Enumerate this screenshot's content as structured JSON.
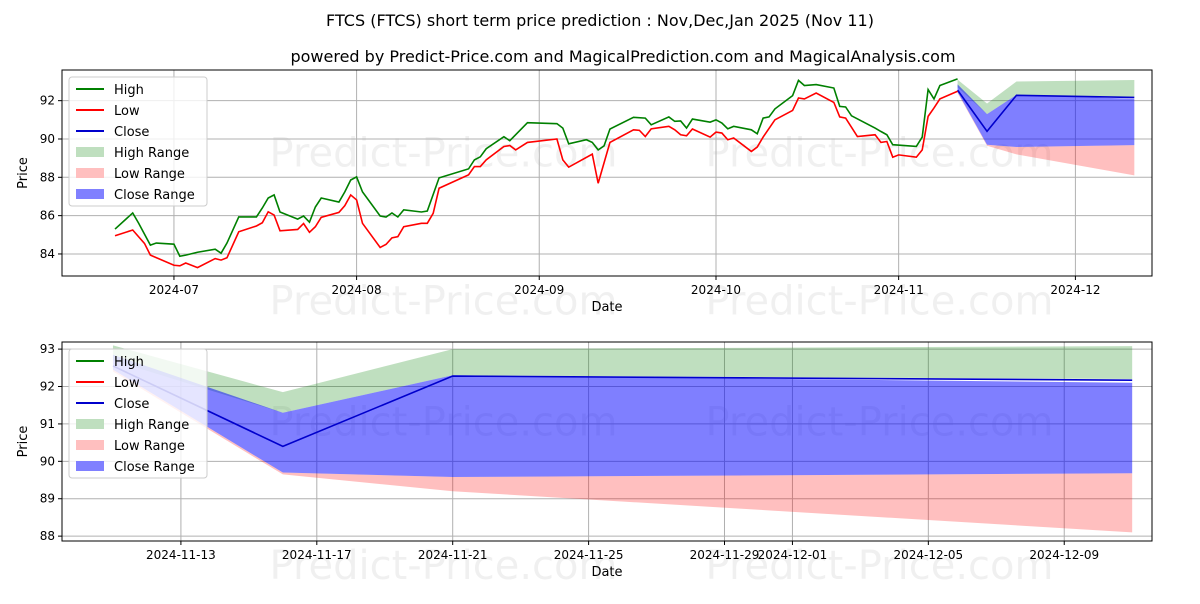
{
  "title": "FTCS (FTCS) short term price prediction : Nov,Dec,Jan 2025 (Nov 11)",
  "subtitle": "powered by Predict-Price.com and MagicalPrediction.com and MagicalAnalysis.com",
  "watermark": "Predict-Price.com",
  "colors": {
    "high": "#008000",
    "low": "#ff0000",
    "close": "#0000cc",
    "high_range": "#bfdfbf",
    "low_range": "#ffbfbf",
    "close_range": "#8080ff"
  },
  "legend": [
    "High",
    "Low",
    "Close",
    "High Range",
    "Low Range",
    "Close Range"
  ],
  "chart_data": [
    {
      "type": "line",
      "xlabel": "Date",
      "ylabel": "Price",
      "xlim": [
        "2024-06-12",
        "2024-12-14"
      ],
      "ylim": [
        82.85,
        93.6
      ],
      "xticks": [
        "2024-07-01",
        "2024-08-01",
        "2024-09-01",
        "2024-10-01",
        "2024-11-01",
        "2024-12-01"
      ],
      "xtick_labels": [
        "2024-07",
        "2024-08",
        "2024-09",
        "2024-10",
        "2024-11",
        "2024-12"
      ],
      "yticks": [
        84,
        86,
        88,
        90,
        92
      ],
      "grid": true,
      "legend_position": "top-left",
      "high": [
        [
          "2024-06-21",
          85.3
        ],
        [
          "2024-06-24",
          86.14
        ],
        [
          "2024-06-25",
          85.61
        ],
        [
          "2024-06-27",
          84.46
        ],
        [
          "2024-06-28",
          84.57
        ],
        [
          "2024-07-01",
          84.51
        ],
        [
          "2024-07-02",
          83.88
        ],
        [
          "2024-07-03",
          83.94
        ],
        [
          "2024-07-05",
          84.09
        ],
        [
          "2024-07-08",
          84.25
        ],
        [
          "2024-07-09",
          84.04
        ],
        [
          "2024-07-10",
          84.57
        ],
        [
          "2024-07-12",
          85.93
        ],
        [
          "2024-07-15",
          85.93
        ],
        [
          "2024-07-16",
          86.4
        ],
        [
          "2024-07-17",
          86.92
        ],
        [
          "2024-07-18",
          87.08
        ],
        [
          "2024-07-19",
          86.19
        ],
        [
          "2024-07-22",
          85.82
        ],
        [
          "2024-07-23",
          85.98
        ],
        [
          "2024-07-24",
          85.66
        ],
        [
          "2024-07-25",
          86.45
        ],
        [
          "2024-07-26",
          86.92
        ],
        [
          "2024-07-29",
          86.71
        ],
        [
          "2024-07-30",
          87.24
        ],
        [
          "2024-07-31",
          87.86
        ],
        [
          "2024-08-01",
          88.02
        ],
        [
          "2024-08-02",
          87.24
        ],
        [
          "2024-08-05",
          85.98
        ],
        [
          "2024-08-06",
          85.93
        ],
        [
          "2024-08-07",
          86.14
        ],
        [
          "2024-08-08",
          85.93
        ],
        [
          "2024-08-09",
          86.3
        ],
        [
          "2024-08-12",
          86.19
        ],
        [
          "2024-08-13",
          86.24
        ],
        [
          "2024-08-15",
          87.97
        ],
        [
          "2024-08-20",
          88.44
        ],
        [
          "2024-08-21",
          88.91
        ],
        [
          "2024-08-22",
          89.07
        ],
        [
          "2024-08-23",
          89.49
        ],
        [
          "2024-08-26",
          90.12
        ],
        [
          "2024-08-27",
          89.91
        ],
        [
          "2024-08-30",
          90.85
        ],
        [
          "2024-09-04",
          90.8
        ],
        [
          "2024-09-05",
          90.57
        ],
        [
          "2024-09-06",
          89.75
        ],
        [
          "2024-09-09",
          89.96
        ],
        [
          "2024-09-10",
          89.82
        ],
        [
          "2024-09-11",
          89.43
        ],
        [
          "2024-09-12",
          89.64
        ],
        [
          "2024-09-13",
          90.52
        ],
        [
          "2024-09-17",
          91.13
        ],
        [
          "2024-09-19",
          91.09
        ],
        [
          "2024-09-20",
          90.74
        ],
        [
          "2024-09-23",
          91.15
        ],
        [
          "2024-09-24",
          90.92
        ],
        [
          "2024-09-25",
          90.94
        ],
        [
          "2024-09-26",
          90.57
        ],
        [
          "2024-09-27",
          91.04
        ],
        [
          "2024-09-30",
          90.88
        ],
        [
          "2024-10-01",
          91.0
        ],
        [
          "2024-10-02",
          90.83
        ],
        [
          "2024-10-03",
          90.53
        ],
        [
          "2024-10-04",
          90.66
        ],
        [
          "2024-10-07",
          90.48
        ],
        [
          "2024-10-08",
          90.27
        ],
        [
          "2024-10-09",
          91.09
        ],
        [
          "2024-10-10",
          91.15
        ],
        [
          "2024-10-11",
          91.57
        ],
        [
          "2024-10-14",
          92.26
        ],
        [
          "2024-10-15",
          93.06
        ],
        [
          "2024-10-16",
          92.79
        ],
        [
          "2024-10-18",
          92.84
        ],
        [
          "2024-10-21",
          92.66
        ],
        [
          "2024-10-22",
          91.7
        ],
        [
          "2024-10-23",
          91.67
        ],
        [
          "2024-10-24",
          91.21
        ],
        [
          "2024-10-28",
          90.57
        ],
        [
          "2024-10-29",
          90.39
        ],
        [
          "2024-10-30",
          90.22
        ],
        [
          "2024-10-31",
          89.7
        ],
        [
          "2024-11-04",
          89.61
        ],
        [
          "2024-11-05",
          90.1
        ],
        [
          "2024-11-06",
          92.58
        ],
        [
          "2024-11-07",
          92.09
        ],
        [
          "2024-11-08",
          92.79
        ],
        [
          "2024-11-11",
          93.14
        ]
      ],
      "low": [
        [
          "2024-06-21",
          84.95
        ],
        [
          "2024-06-24",
          85.25
        ],
        [
          "2024-06-26",
          84.55
        ],
        [
          "2024-06-27",
          83.94
        ],
        [
          "2024-07-01",
          83.41
        ],
        [
          "2024-07-02",
          83.38
        ],
        [
          "2024-07-03",
          83.53
        ],
        [
          "2024-07-05",
          83.29
        ],
        [
          "2024-07-08",
          83.76
        ],
        [
          "2024-07-09",
          83.68
        ],
        [
          "2024-07-10",
          83.8
        ],
        [
          "2024-07-12",
          85.16
        ],
        [
          "2024-07-15",
          85.46
        ],
        [
          "2024-07-16",
          85.63
        ],
        [
          "2024-07-17",
          86.2
        ],
        [
          "2024-07-18",
          86.03
        ],
        [
          "2024-07-19",
          85.21
        ],
        [
          "2024-07-22",
          85.28
        ],
        [
          "2024-07-23",
          85.59
        ],
        [
          "2024-07-24",
          85.13
        ],
        [
          "2024-07-25",
          85.42
        ],
        [
          "2024-07-26",
          85.91
        ],
        [
          "2024-07-29",
          86.17
        ],
        [
          "2024-07-30",
          86.52
        ],
        [
          "2024-07-31",
          87.08
        ],
        [
          "2024-08-01",
          86.82
        ],
        [
          "2024-08-02",
          85.6
        ],
        [
          "2024-08-05",
          84.34
        ],
        [
          "2024-08-06",
          84.5
        ],
        [
          "2024-08-07",
          84.84
        ],
        [
          "2024-08-08",
          84.9
        ],
        [
          "2024-08-09",
          85.42
        ],
        [
          "2024-08-12",
          85.6
        ],
        [
          "2024-08-13",
          85.6
        ],
        [
          "2024-08-14",
          86.12
        ],
        [
          "2024-08-15",
          87.43
        ],
        [
          "2024-08-20",
          88.13
        ],
        [
          "2024-08-21",
          88.56
        ],
        [
          "2024-08-22",
          88.56
        ],
        [
          "2024-08-23",
          88.91
        ],
        [
          "2024-08-26",
          89.61
        ],
        [
          "2024-08-27",
          89.66
        ],
        [
          "2024-08-28",
          89.43
        ],
        [
          "2024-08-30",
          89.82
        ],
        [
          "2024-09-04",
          90.0
        ],
        [
          "2024-09-05",
          88.91
        ],
        [
          "2024-09-06",
          88.53
        ],
        [
          "2024-09-10",
          89.21
        ],
        [
          "2024-09-11",
          87.69
        ],
        [
          "2024-09-13",
          89.82
        ],
        [
          "2024-09-17",
          90.48
        ],
        [
          "2024-09-18",
          90.45
        ],
        [
          "2024-09-19",
          90.13
        ],
        [
          "2024-09-20",
          90.53
        ],
        [
          "2024-09-23",
          90.66
        ],
        [
          "2024-09-24",
          90.48
        ],
        [
          "2024-09-25",
          90.22
        ],
        [
          "2024-09-26",
          90.17
        ],
        [
          "2024-09-27",
          90.52
        ],
        [
          "2024-09-30",
          90.1
        ],
        [
          "2024-10-01",
          90.36
        ],
        [
          "2024-10-02",
          90.31
        ],
        [
          "2024-10-03",
          89.96
        ],
        [
          "2024-10-04",
          90.05
        ],
        [
          "2024-10-07",
          89.35
        ],
        [
          "2024-10-08",
          89.58
        ],
        [
          "2024-10-09",
          90.1
        ],
        [
          "2024-10-11",
          91.0
        ],
        [
          "2024-10-14",
          91.49
        ],
        [
          "2024-10-15",
          92.14
        ],
        [
          "2024-10-16",
          92.09
        ],
        [
          "2024-10-18",
          92.4
        ],
        [
          "2024-10-21",
          91.91
        ],
        [
          "2024-10-22",
          91.15
        ],
        [
          "2024-10-23",
          91.09
        ],
        [
          "2024-10-25",
          90.13
        ],
        [
          "2024-10-28",
          90.22
        ],
        [
          "2024-10-29",
          89.82
        ],
        [
          "2024-10-30",
          89.87
        ],
        [
          "2024-10-31",
          89.05
        ],
        [
          "2024-11-01",
          89.17
        ],
        [
          "2024-11-04",
          89.05
        ],
        [
          "2024-11-05",
          89.43
        ],
        [
          "2024-11-06",
          91.18
        ],
        [
          "2024-11-07",
          91.62
        ],
        [
          "2024-11-08",
          92.09
        ],
        [
          "2024-11-11",
          92.49
        ]
      ]
    },
    {
      "type": "area",
      "xlabel": "Date",
      "ylabel": "Price",
      "xlim": [
        "2024-11-09T12:00",
        "2024-12-11T14:00"
      ],
      "ylim": [
        87.87,
        93.19
      ],
      "xticks": [
        "2024-11-13",
        "2024-11-17",
        "2024-11-21",
        "2024-11-25",
        "2024-11-29",
        "2024-12-01",
        "2024-12-05",
        "2024-12-09"
      ],
      "xtick_labels": [
        "2024-11-13",
        "2024-11-17",
        "2024-11-21",
        "2024-11-25",
        "2024-11-29",
        "2024-12-01",
        "2024-12-05",
        "2024-12-09"
      ],
      "yticks": [
        88,
        89,
        90,
        91,
        92,
        93
      ],
      "grid": true,
      "legend_position": "top-left"
    }
  ],
  "forecast": {
    "dates": [
      "2024-11-11",
      "2024-11-16",
      "2024-11-21",
      "2024-12-11"
    ],
    "close": [
      92.55,
      90.4,
      92.28,
      92.17
    ],
    "high_range": {
      "lower": [
        92.7,
        91.3,
        92.3,
        92.2
      ],
      "upper": [
        93.1,
        91.85,
        93.0,
        93.08
      ]
    },
    "close_range": {
      "lower": [
        92.45,
        89.7,
        89.58,
        89.68
      ],
      "upper": [
        92.85,
        91.3,
        92.3,
        92.1
      ]
    },
    "low_range": {
      "lower": [
        92.4,
        89.65,
        89.2,
        88.1
      ],
      "upper": [
        92.45,
        89.7,
        89.58,
        89.68
      ]
    }
  }
}
